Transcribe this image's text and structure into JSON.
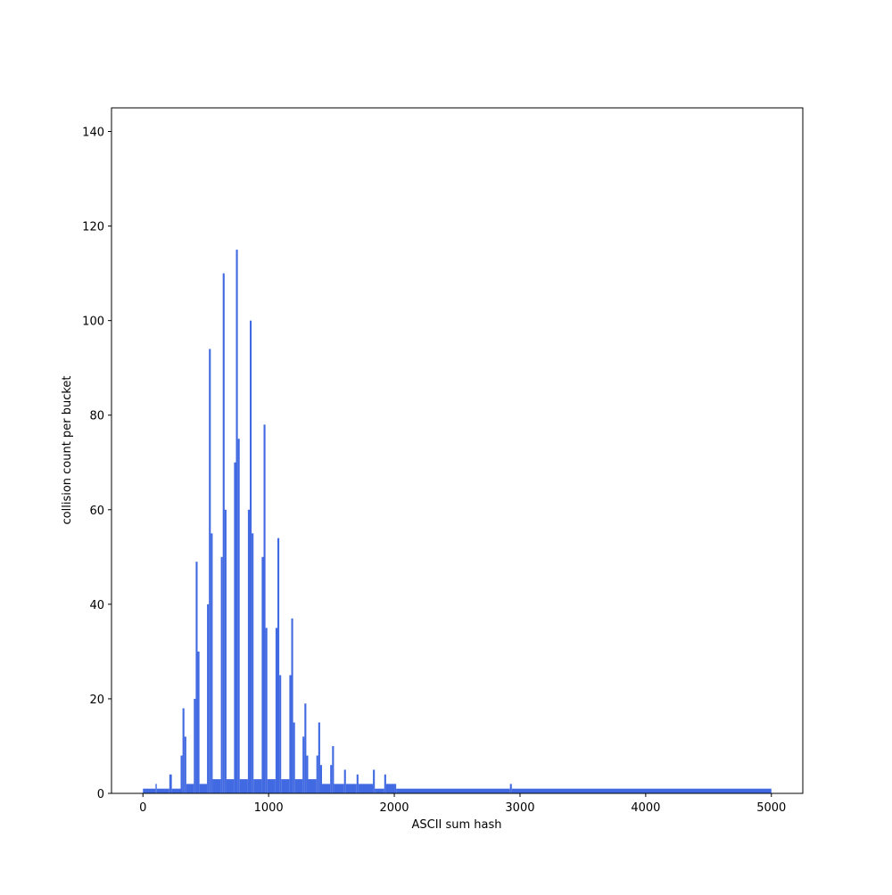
{
  "chart_data": {
    "type": "histogram",
    "xlabel": "ASCII sum hash",
    "ylabel": "collision count per bucket",
    "bins": [
      0,
      100,
      110,
      210,
      230,
      300,
      315,
      330,
      345,
      405,
      420,
      435,
      450,
      510,
      525,
      540,
      555,
      620,
      635,
      650,
      665,
      725,
      740,
      755,
      770,
      835,
      850,
      865,
      880,
      945,
      960,
      975,
      990,
      1055,
      1070,
      1085,
      1100,
      1165,
      1180,
      1195,
      1210,
      1270,
      1285,
      1300,
      1315,
      1380,
      1395,
      1410,
      1425,
      1490,
      1505,
      1520,
      1600,
      1615,
      1700,
      1715,
      1830,
      1845,
      1920,
      1935,
      2000,
      2015,
      2920,
      2935,
      5000
    ],
    "values": [
      1,
      2,
      1,
      4,
      1,
      8,
      18,
      12,
      2,
      20,
      49,
      30,
      2,
      40,
      94,
      55,
      3,
      50,
      110,
      60,
      3,
      70,
      115,
      75,
      3,
      60,
      100,
      55,
      3,
      50,
      78,
      35,
      3,
      35,
      54,
      25,
      3,
      25,
      37,
      15,
      3,
      12,
      19,
      8,
      3,
      8,
      15,
      6,
      2,
      6,
      10,
      2,
      5,
      2,
      4,
      2,
      5,
      1,
      4,
      2,
      2,
      1,
      2,
      1
    ],
    "color": "#4169e1",
    "xlim": [
      -250,
      5250
    ],
    "xticks": [
      0,
      1000,
      2000,
      3000,
      4000,
      5000
    ],
    "ylim": [
      0,
      145
    ],
    "yticks": [
      0,
      20,
      40,
      60,
      80,
      100,
      120,
      140
    ],
    "grid": false
  }
}
